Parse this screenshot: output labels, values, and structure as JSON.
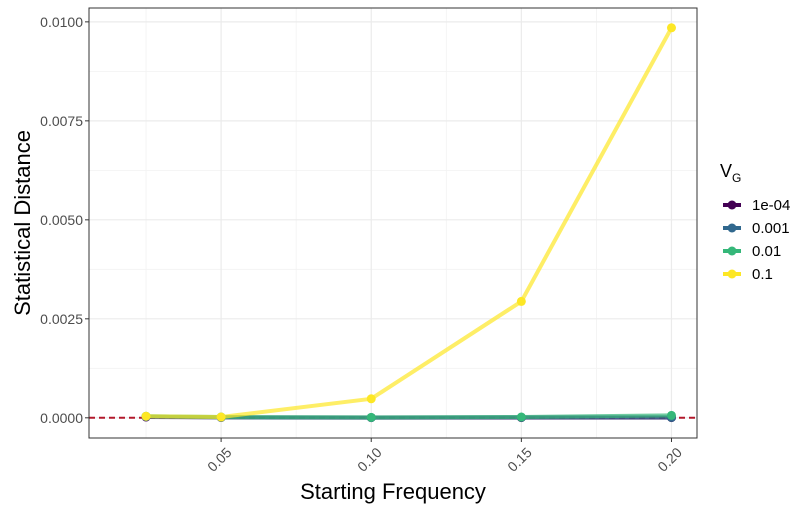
{
  "chart_data": {
    "type": "line",
    "xlabel": "Starting Frequency",
    "ylabel": "Statistical Distance",
    "xlim": [
      0.006,
      0.2085
    ],
    "ylim": [
      -0.00051,
      0.01035
    ],
    "x_ticks": [
      0.05,
      0.1,
      0.15,
      0.2
    ],
    "x_tick_labels": [
      "0.05",
      "0.10",
      "0.15",
      "0.20"
    ],
    "y_ticks": [
      0.0,
      0.0025,
      0.005,
      0.0075,
      0.01
    ],
    "y_tick_labels": [
      "0.0000",
      "0.0025",
      "0.0050",
      "0.0075",
      "0.0100"
    ],
    "grid": true,
    "legend_position": "right",
    "legend_title": "V",
    "legend_title_subscript": "G",
    "reference_line": {
      "y": 0.0,
      "color": "#b2182b",
      "style": "dashed"
    },
    "series": [
      {
        "name": "1e-04",
        "color": "#440154",
        "x": [
          0.025,
          0.05,
          0.1,
          0.15,
          0.2
        ],
        "y": [
          2e-05,
          1e-05,
          5e-06,
          5e-06,
          5e-06
        ]
      },
      {
        "name": "0.001",
        "color": "#31688e",
        "x": [
          0.025,
          0.05,
          0.1,
          0.15,
          0.2
        ],
        "y": [
          3e-05,
          1e-05,
          5e-06,
          1e-05,
          1e-05
        ]
      },
      {
        "name": "0.01",
        "color": "#35b779",
        "x": [
          0.025,
          0.05,
          0.1,
          0.15,
          0.2
        ],
        "y": [
          4e-05,
          2e-05,
          1e-05,
          2e-05,
          6e-05
        ]
      },
      {
        "name": "0.1",
        "color": "#fde725",
        "x": [
          0.025,
          0.05,
          0.1,
          0.15,
          0.2
        ],
        "y": [
          4e-05,
          2e-05,
          0.00048,
          0.00294,
          0.00985
        ]
      }
    ]
  }
}
